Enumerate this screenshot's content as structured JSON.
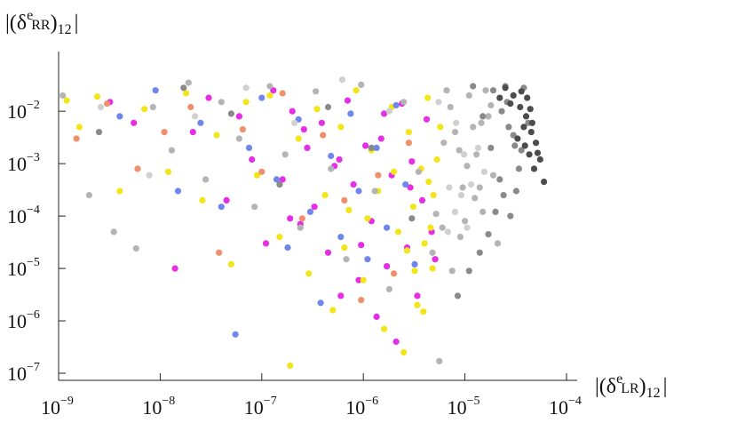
{
  "chart_data": {
    "type": "scatter",
    "x_scale": "log",
    "y_scale": "log",
    "xlim": [
      1e-09,
      0.0001
    ],
    "ylim": [
      1e-07,
      0.04
    ],
    "x_tick_labels": [
      {
        "base": "10",
        "exp": "−9",
        "value": 1e-09
      },
      {
        "base": "10",
        "exp": "−8",
        "value": 1e-08
      },
      {
        "base": "10",
        "exp": "−7",
        "value": 1e-07
      },
      {
        "base": "10",
        "exp": "−6",
        "value": 1e-06
      },
      {
        "base": "10",
        "exp": "−5",
        "value": 1e-05
      },
      {
        "base": "10",
        "exp": "−4",
        "value": 0.0001
      }
    ],
    "y_tick_labels": [
      {
        "base": "10",
        "exp": "−2",
        "value": 0.01
      },
      {
        "base": "10",
        "exp": "−3",
        "value": 0.001
      },
      {
        "base": "10",
        "exp": "−4",
        "value": 0.0001
      },
      {
        "base": "10",
        "exp": "−5",
        "value": 1e-05
      },
      {
        "base": "10",
        "exp": "−6",
        "value": 1e-06
      },
      {
        "base": "10",
        "exp": "−7",
        "value": 1e-07
      }
    ],
    "xlabel": {
      "open": "|(δ",
      "sup": "e",
      "sub": "LR",
      "close": ")",
      "index": "12",
      "bar": "|"
    },
    "ylabel": {
      "open": "|(δ",
      "sup": "e",
      "sub": "RR",
      "close": ")",
      "index": "12",
      "bar": "|"
    },
    "grid": false,
    "legend": "none",
    "series": [
      {
        "color": "#e52ee5",
        "values": [
          [
            3.2e-09,
            0.015
          ],
          [
            5.5e-09,
            0.006
          ],
          [
            1.4e-08,
            1e-05
          ],
          [
            2.1e-08,
            0.004
          ],
          [
            3e-08,
            0.018
          ],
          [
            4.5e-08,
            0.0002
          ],
          [
            6e-08,
            0.008
          ],
          [
            8e-08,
            0.0012
          ],
          [
            1.1e-07,
            3e-05
          ],
          [
            1.3e-07,
            0.025
          ],
          [
            1.6e-07,
            0.0005
          ],
          [
            2e-07,
            0.01
          ],
          [
            2.4e-07,
            7e-05
          ],
          [
            2.8e-07,
            0.002
          ],
          [
            3.3e-07,
            0.00015
          ],
          [
            3.9e-07,
            0.006
          ],
          [
            4.5e-07,
            2e-05
          ],
          [
            5.2e-07,
            0.0009
          ],
          [
            6e-07,
            3e-06
          ],
          [
            7e-07,
            0.016
          ],
          [
            8e-07,
            0.0004
          ],
          [
            9e-07,
            6e-06
          ],
          [
            1.05e-06,
            0.0022
          ],
          [
            1.2e-06,
            8e-05
          ],
          [
            1.35e-06,
            1.2e-06
          ],
          [
            1.5e-06,
            0.003
          ],
          [
            1.7e-06,
            1.1e-05
          ],
          [
            1.9e-06,
            0.0006
          ],
          [
            2.1e-06,
            4e-07
          ],
          [
            2.4e-06,
            0.014
          ],
          [
            2.7e-06,
            2.5e-05
          ],
          [
            3e-06,
            0.0011
          ],
          [
            3.4e-06,
            3e-06
          ],
          [
            3.8e-06,
            0.0002
          ],
          [
            4.2e-06,
            0.007
          ],
          [
            4.7e-06,
            5e-05
          ],
          [
            5.1e-06,
            1.5e-05
          ],
          [
            2.6e-07,
            0.0045
          ],
          [
            1.9e-07,
            9e-05
          ],
          [
            5.8e-07,
            0.0012
          ],
          [
            9.5e-07,
            2.8e-05
          ],
          [
            1.6e-06,
            0.009
          ],
          [
            2.9e-06,
            0.00035
          ]
        ]
      },
      {
        "color": "#f2e61a",
        "values": [
          [
            1.2e-09,
            0.016
          ],
          [
            1.6e-09,
            0.005
          ],
          [
            2.4e-09,
            0.019
          ],
          [
            4e-09,
            0.0003
          ],
          [
            7e-09,
            0.011
          ],
          [
            1.2e-08,
            0.0007
          ],
          [
            1.8e-08,
            0.022
          ],
          [
            2.6e-08,
            0.0002
          ],
          [
            3.6e-08,
            0.0035
          ],
          [
            5e-08,
            1.2e-05
          ],
          [
            7e-08,
            0.015
          ],
          [
            9e-08,
            0.0006
          ],
          [
            1.2e-07,
            0.02
          ],
          [
            1.5e-07,
            4e-05
          ],
          [
            1.9e-07,
            1.4e-07
          ],
          [
            2.3e-07,
            0.003
          ],
          [
            2.9e-07,
            8e-06
          ],
          [
            3.5e-07,
            0.011
          ],
          [
            4.2e-07,
            0.00025
          ],
          [
            5e-07,
            1.6e-06
          ],
          [
            6e-07,
            0.005
          ],
          [
            7.2e-07,
            0.00013
          ],
          [
            8.5e-07,
            0.025
          ],
          [
            1e-06,
            6e-06
          ],
          [
            1.2e-06,
            0.0018
          ],
          [
            1.4e-06,
            0.0003
          ],
          [
            1.6e-06,
            7e-07
          ],
          [
            1.9e-06,
            0.012
          ],
          [
            2.2e-06,
            5e-05
          ],
          [
            2.5e-06,
            2.5e-07
          ],
          [
            2.8e-06,
            0.004
          ],
          [
            3.1e-06,
            0.00015
          ],
          [
            3.4e-06,
            2e-06
          ],
          [
            3.7e-06,
            0.0008
          ],
          [
            4e-06,
            3e-05
          ],
          [
            4.3e-06,
            0.018
          ],
          [
            4.6e-06,
            6e-05
          ],
          [
            4.9e-06,
            0.00025
          ],
          [
            5.3e-06,
            0.0012
          ],
          [
            5.7e-06,
            0.005
          ],
          [
            3.2e-06,
            9e-06
          ],
          [
            2.7e-06,
            2.2e-05
          ],
          [
            3.9e-06,
            1.5e-06
          ],
          [
            4.4e-06,
            0.00045
          ],
          [
            2e-06,
            0.0007
          ],
          [
            1.1e-06,
            9e-05
          ],
          [
            6.5e-07,
            2.5e-05
          ],
          [
            4.8e-06,
            1e-05
          ]
        ]
      },
      {
        "color": "#6f86ec",
        "values": [
          [
            4e-09,
            0.008
          ],
          [
            9e-09,
            0.025
          ],
          [
            1.5e-08,
            0.0003
          ],
          [
            2.5e-08,
            0.006
          ],
          [
            4e-08,
            0.00015
          ],
          [
            5.5e-08,
            5.5e-07
          ],
          [
            7.5e-08,
            0.002
          ],
          [
            1e-07,
            0.018
          ],
          [
            1.4e-07,
            0.0005
          ],
          [
            1.8e-07,
            2.5e-05
          ],
          [
            2.3e-07,
            0.007
          ],
          [
            3e-07,
            0.00012
          ],
          [
            3.8e-07,
            2.2e-06
          ],
          [
            4.8e-07,
            0.0014
          ],
          [
            6e-07,
            4e-05
          ],
          [
            7.5e-07,
            0.009
          ],
          [
            9e-07,
            0.0003
          ],
          [
            1.1e-06,
            1.5e-05
          ],
          [
            1.35e-06,
            0.002
          ],
          [
            1.7e-06,
            6e-05
          ],
          [
            2.1e-06,
            0.013
          ],
          [
            2.6e-06,
            0.0004
          ],
          [
            3.2e-06,
            1.2e-05
          ]
        ]
      },
      {
        "color": "#f0906a",
        "values": [
          [
            1.5e-09,
            0.003
          ],
          [
            3e-09,
            0.014
          ],
          [
            6e-09,
            0.0008
          ],
          [
            1.1e-08,
            0.004
          ],
          [
            2e-08,
            0.012
          ],
          [
            3.8e-08,
            2e-05
          ],
          [
            6.5e-08,
            0.0045
          ],
          [
            1e-07,
            0.0007
          ],
          [
            1.6e-07,
            0.022
          ],
          [
            2.5e-07,
            9e-05
          ],
          [
            4e-07,
            0.0035
          ],
          [
            6.5e-07,
            0.0002
          ],
          [
            9.5e-07,
            2.5e-06
          ],
          [
            1.4e-06,
            0.0006
          ],
          [
            2e-06,
            8e-06
          ],
          [
            2.8e-06,
            0.0025
          ]
        ]
      },
      {
        "color": "#b4b4b4",
        "values": [
          [
            1.1e-09,
            0.02
          ],
          [
            2e-09,
            0.00025
          ],
          [
            3.5e-09,
            5e-05
          ],
          [
            5.8e-09,
            2.4e-05
          ],
          [
            8.5e-09,
            0.012
          ],
          [
            1.3e-08,
            0.0018
          ],
          [
            1.9e-08,
            0.035
          ],
          [
            2.8e-08,
            0.0005
          ],
          [
            4e-08,
            0.015
          ],
          [
            6e-08,
            0.003
          ],
          [
            8.5e-08,
            0.00015
          ],
          [
            1.2e-07,
            0.03
          ],
          [
            1.7e-07,
            0.0015
          ],
          [
            2.4e-07,
            6e-05
          ],
          [
            3.4e-07,
            0.024
          ],
          [
            4.8e-07,
            0.0008
          ],
          [
            6.8e-07,
            1.5e-05
          ],
          [
            9.5e-07,
            0.032
          ],
          [
            1.3e-06,
            0.0003
          ],
          [
            1.8e-06,
            4e-06
          ],
          [
            2.5e-06,
            0.015
          ],
          [
            3.5e-06,
            0.0007
          ],
          [
            4.8e-06,
            2e-05
          ],
          [
            5.6e-06,
            1.7e-07
          ],
          [
            6.6e-06,
            0.025
          ],
          [
            8e-06,
            0.004
          ],
          [
            9.5e-06,
            0.00035
          ],
          [
            1.1e-05,
            0.02
          ],
          [
            1.3e-05,
            0.0015
          ],
          [
            1.5e-05,
            0.00012
          ],
          [
            1.7e-05,
            0.008
          ],
          [
            1.9e-05,
            0.0006
          ],
          [
            2.1e-05,
            3e-05
          ],
          [
            7.2e-06,
            0.012
          ],
          [
            8.8e-06,
            0.0018
          ],
          [
            1e-05,
            8e-05
          ],
          [
            1.2e-05,
            0.005
          ],
          [
            1.4e-05,
            0.00035
          ],
          [
            1.6e-05,
            0.025
          ],
          [
            6e-06,
            6e-05
          ],
          [
            7.5e-06,
            9e-06
          ],
          [
            9e-06,
            4e-05
          ],
          [
            5.2e-06,
            0.00011
          ],
          [
            6.2e-06,
            0.0025
          ],
          [
            1.05e-05,
            0.0009
          ],
          [
            1.25e-05,
            0.00022
          ],
          [
            1.45e-05,
            0.006
          ],
          [
            1.8e-05,
            0.013
          ]
        ]
      },
      {
        "color": "#8a8a8a",
        "values": [
          [
            2.5e-09,
            0.004
          ],
          [
            1.7e-08,
            0.028
          ],
          [
            5e-08,
            0.009
          ],
          [
            1.5e-07,
            0.0004
          ],
          [
            4.5e-07,
            0.012
          ],
          [
            1.2e-06,
            0.002
          ],
          [
            3e-06,
            9e-05
          ],
          [
            1.2e-05,
            0.03
          ],
          [
            1.5e-05,
            0.008
          ],
          [
            1.8e-05,
            0.002
          ],
          [
            2.2e-05,
            0.0005
          ],
          [
            2.6e-05,
            0.015
          ],
          [
            3e-05,
            0.0035
          ],
          [
            3.4e-05,
            0.0008
          ],
          [
            2e-05,
            0.00012
          ],
          [
            2.4e-05,
            0.00025
          ],
          [
            2.8e-05,
            0.0001
          ],
          [
            1.7e-05,
            4.5e-05
          ],
          [
            1.4e-05,
            2e-05
          ],
          [
            1.1e-05,
            9e-06
          ],
          [
            8.5e-06,
            3e-06
          ],
          [
            3.8e-05,
            0.028
          ],
          [
            4.2e-05,
            0.006
          ],
          [
            3.6e-05,
            0.0018
          ],
          [
            3.2e-05,
            0.0003
          ],
          [
            2.5e-05,
            0.03
          ],
          [
            1.9e-05,
            0.025
          ],
          [
            2.3e-05,
            0.01
          ],
          [
            2.7e-05,
            0.005
          ],
          [
            3.1e-05,
            0.0022
          ]
        ]
      },
      {
        "color": "#4c4c4c",
        "values": [
          [
            2.5e-05,
            0.028
          ],
          [
            3e-05,
            0.02
          ],
          [
            3.5e-05,
            0.012
          ],
          [
            4e-05,
            0.008
          ],
          [
            4.5e-05,
            0.004
          ],
          [
            5e-05,
            0.0025
          ],
          [
            5.5e-05,
            0.0012
          ],
          [
            6e-05,
            0.00045
          ],
          [
            3.8e-05,
            0.005
          ],
          [
            4.3e-05,
            0.0015
          ],
          [
            4.8e-05,
            0.0008
          ],
          [
            3.3e-05,
            0.003
          ],
          [
            2.8e-05,
            0.014
          ],
          [
            3.6e-05,
            0.024
          ],
          [
            4.1e-05,
            0.018
          ],
          [
            2.2e-05,
            0.018
          ],
          [
            3.9e-05,
            0.0022
          ],
          [
            4.6e-05,
            0.006
          ],
          [
            5.2e-05,
            0.0016
          ],
          [
            4.4e-05,
            0.011
          ]
        ]
      },
      {
        "color": "#d0d0d0",
        "values": [
          [
            2.6e-09,
            0.012
          ],
          [
            7.8e-09,
            0.0006
          ],
          [
            2.2e-08,
            0.008
          ],
          [
            7e-08,
            0.028
          ],
          [
            2.1e-07,
            0.006
          ],
          [
            6.2e-07,
            0.04
          ],
          [
            1.8e-06,
            0.01
          ],
          [
            5.5e-06,
            0.015
          ],
          [
            8.2e-06,
            0.006
          ],
          [
            9.8e-06,
            0.0015
          ],
          [
            1.15e-05,
            0.0004
          ],
          [
            1.35e-05,
            0.002
          ],
          [
            1.55e-05,
            0.0007
          ],
          [
            7e-06,
            0.00035
          ],
          [
            8e-06,
            0.00012
          ],
          [
            6.8e-06,
            5e-05
          ],
          [
            9.2e-06,
            0.00025
          ],
          [
            1.05e-05,
            6e-05
          ]
        ]
      }
    ]
  }
}
